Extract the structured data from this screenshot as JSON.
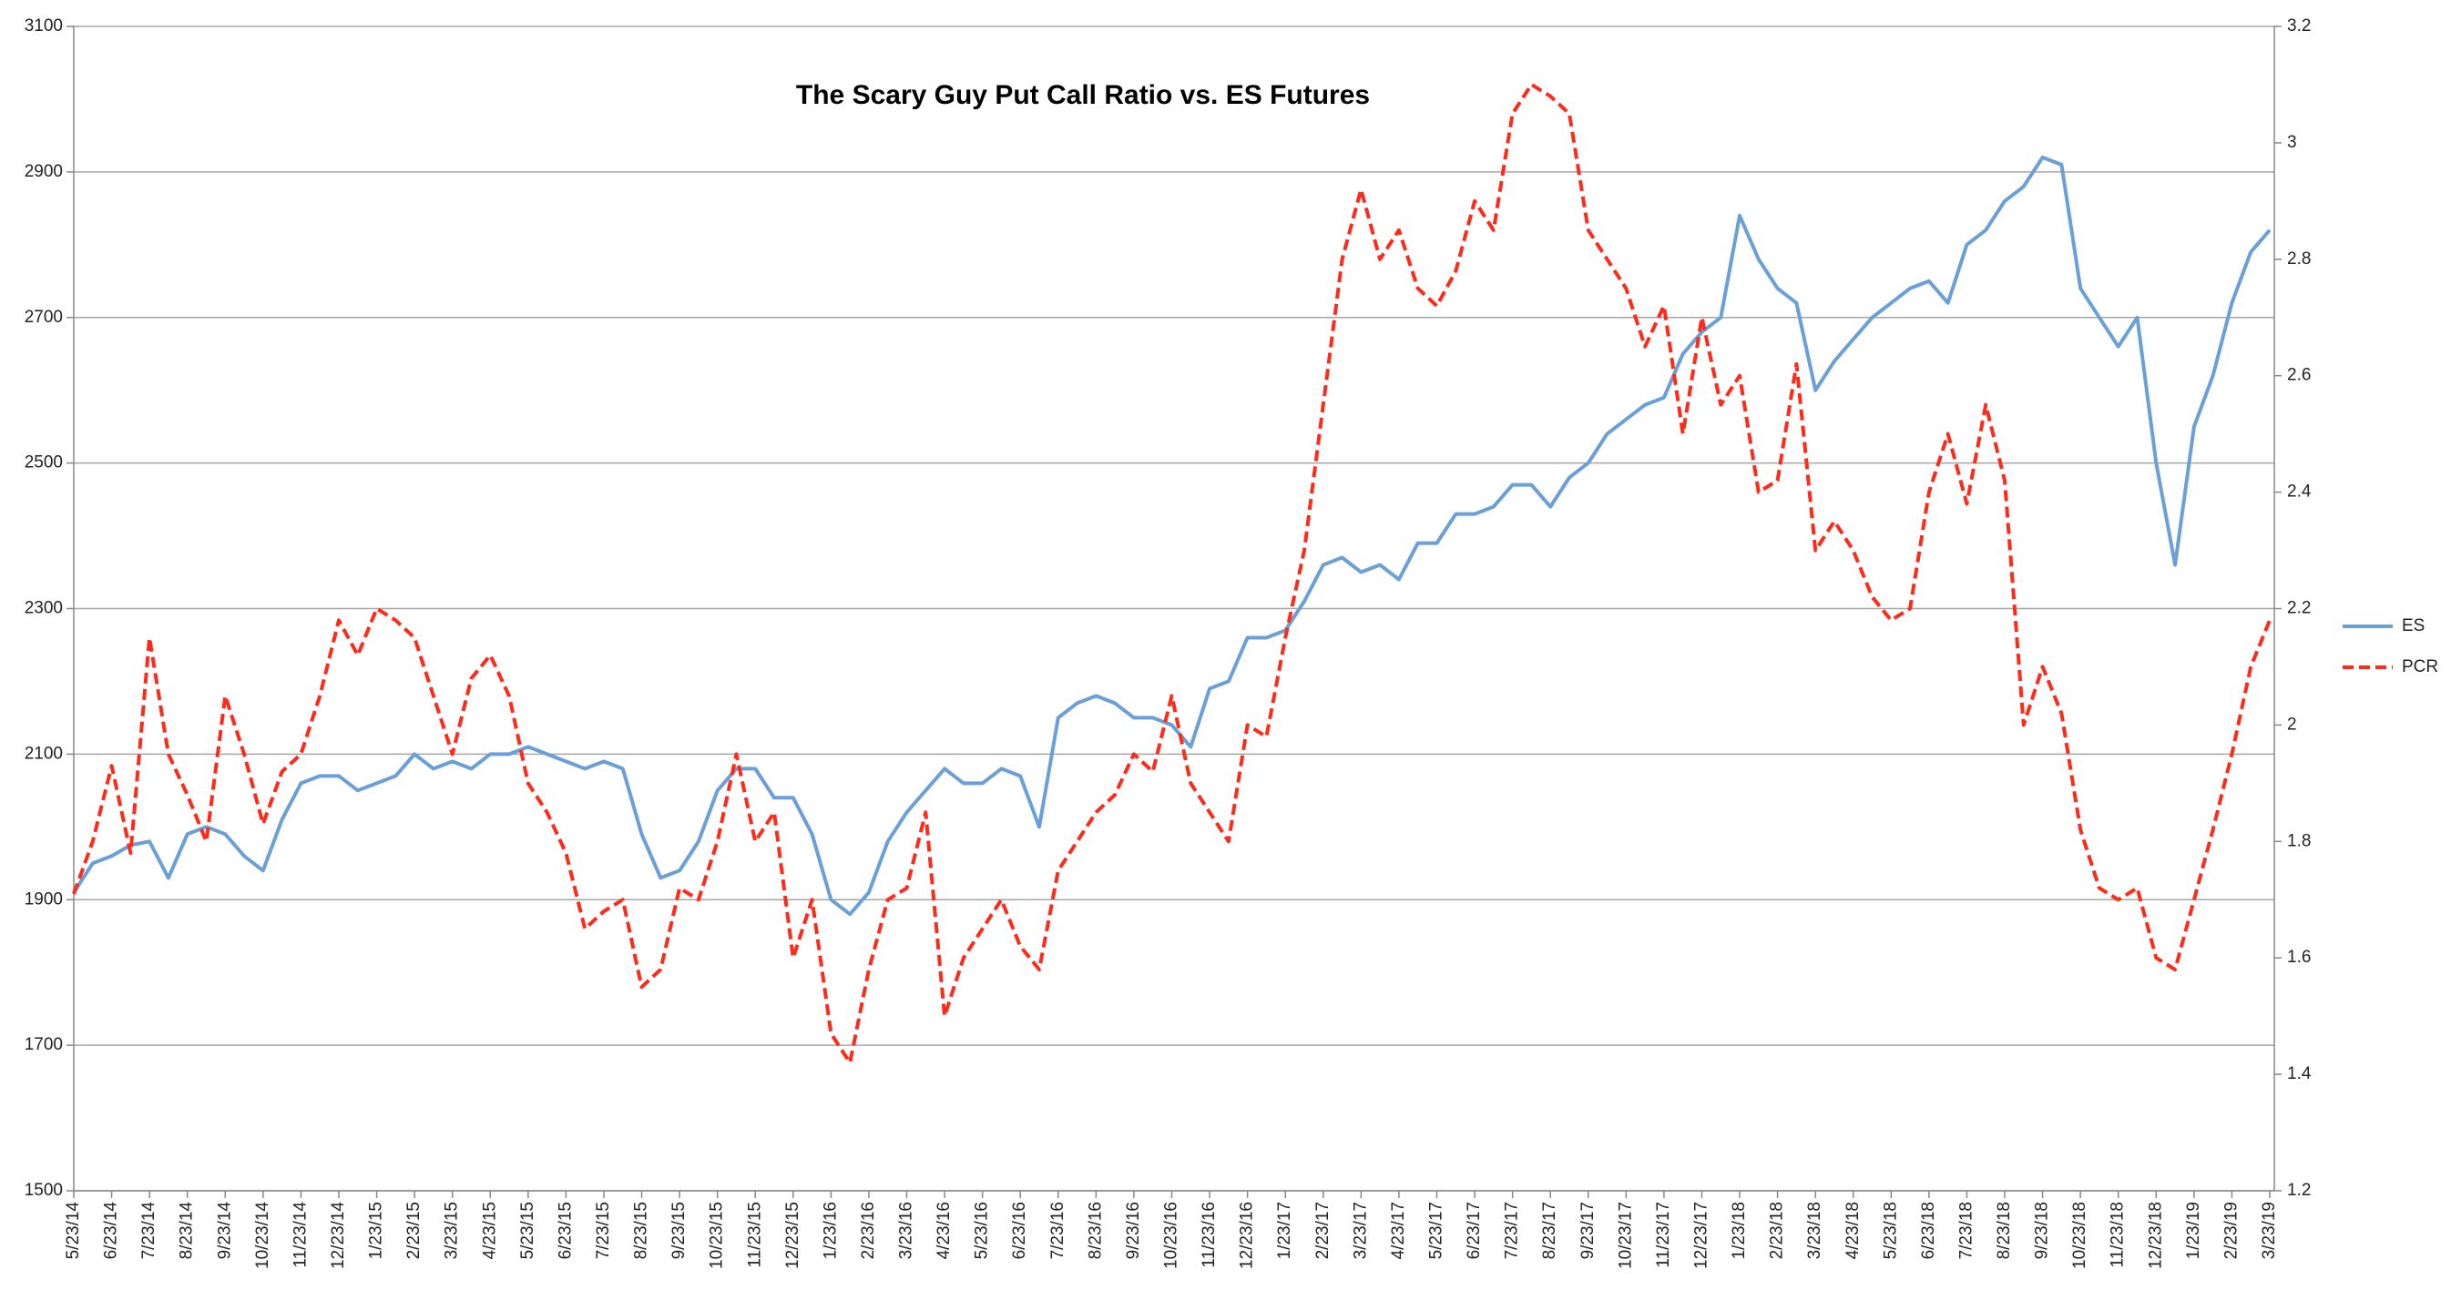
{
  "chart_data": {
    "type": "line",
    "title": "The Scary Guy Put Call Ratio vs. ES Futures",
    "categories": [
      "5/23/14",
      null,
      "6/23/14",
      null,
      "7/23/14",
      null,
      "8/23/14",
      null,
      "9/23/14",
      null,
      "10/23/14",
      null,
      "11/23/14",
      null,
      "12/23/14",
      null,
      "1/23/15",
      null,
      "2/23/15",
      null,
      "3/23/15",
      null,
      "4/23/15",
      null,
      "5/23/15",
      null,
      "6/23/15",
      null,
      "7/23/15",
      null,
      "8/23/15",
      null,
      "9/23/15",
      null,
      "10/23/15",
      null,
      "11/23/15",
      null,
      "12/23/15",
      null,
      "1/23/16",
      null,
      "2/23/16",
      null,
      "3/23/16",
      null,
      "4/23/16",
      null,
      "5/23/16",
      null,
      "6/23/16",
      null,
      "7/23/16",
      null,
      "8/23/16",
      null,
      "9/23/16",
      null,
      "10/23/16",
      null,
      "11/23/16",
      null,
      "12/23/16",
      null,
      "1/23/17",
      null,
      "2/23/17",
      null,
      "3/23/17",
      null,
      "4/23/17",
      null,
      "5/23/17",
      null,
      "6/23/17",
      null,
      "7/23/17",
      null,
      "8/23/17",
      null,
      "9/23/17",
      null,
      "10/23/17",
      null,
      "11/23/17",
      null,
      "12/23/17",
      null,
      "1/23/18",
      null,
      "2/23/18",
      null,
      "3/23/18",
      null,
      "4/23/18",
      null,
      "5/23/18",
      null,
      "6/23/18",
      null,
      "7/23/18",
      null,
      "8/23/18",
      null,
      "9/23/18",
      null,
      "10/23/18",
      null,
      "11/23/18",
      null,
      "12/23/18",
      null,
      "1/23/19",
      null,
      "2/23/19",
      null,
      "3/23/19"
    ],
    "series": [
      {
        "name": "ES",
        "color": "#6a9fd8",
        "axis": "y",
        "dashed": false,
        "values": [
          1910,
          1950,
          1960,
          1975,
          1980,
          1930,
          1990,
          2000,
          1990,
          1960,
          1940,
          2010,
          2060,
          2070,
          2070,
          2050,
          2060,
          2070,
          2100,
          2080,
          2090,
          2080,
          2100,
          2100,
          2110,
          2100,
          2090,
          2080,
          2090,
          2080,
          1990,
          1930,
          1940,
          1980,
          2050,
          2080,
          2080,
          2040,
          2040,
          1990,
          1900,
          1880,
          1910,
          1980,
          2020,
          2050,
          2080,
          2060,
          2060,
          2080,
          2070,
          2000,
          2150,
          2170,
          2180,
          2170,
          2150,
          2150,
          2140,
          2110,
          2190,
          2200,
          2260,
          2260,
          2270,
          2310,
          2360,
          2370,
          2350,
          2360,
          2340,
          2390,
          2390,
          2430,
          2430,
          2440,
          2470,
          2470,
          2440,
          2480,
          2500,
          2540,
          2560,
          2580,
          2590,
          2650,
          2680,
          2700,
          2840,
          2780,
          2740,
          2720,
          2600,
          2640,
          2670,
          2700,
          2720,
          2740,
          2750,
          2720,
          2800,
          2820,
          2860,
          2880,
          2920,
          2910,
          2740,
          2700,
          2660,
          2700,
          2500,
          2360,
          2550,
          2620,
          2720,
          2790,
          2820
        ]
      },
      {
        "name": "PCR",
        "color": "#ff2a1a",
        "axis": "y2",
        "dashed": true,
        "values": [
          1.71,
          1.8,
          1.93,
          1.78,
          2.15,
          1.95,
          1.88,
          1.8,
          2.05,
          1.95,
          1.83,
          1.92,
          1.95,
          2.05,
          2.18,
          2.12,
          2.2,
          2.18,
          2.15,
          2.05,
          1.95,
          2.08,
          2.12,
          2.05,
          1.9,
          1.85,
          1.78,
          1.65,
          1.68,
          1.7,
          1.55,
          1.58,
          1.72,
          1.7,
          1.8,
          1.95,
          1.8,
          1.85,
          1.6,
          1.7,
          1.47,
          1.42,
          1.58,
          1.7,
          1.72,
          1.85,
          1.5,
          1.6,
          1.65,
          1.7,
          1.62,
          1.58,
          1.75,
          1.8,
          1.85,
          1.88,
          1.95,
          1.92,
          2.05,
          1.9,
          1.85,
          1.8,
          2.0,
          1.98,
          2.15,
          2.3,
          2.55,
          2.8,
          2.92,
          2.8,
          2.85,
          2.75,
          2.72,
          2.78,
          2.9,
          2.85,
          3.05,
          3.1,
          3.08,
          3.05,
          2.85,
          2.8,
          2.75,
          2.65,
          2.72,
          2.5,
          2.7,
          2.55,
          2.6,
          2.4,
          2.42,
          2.62,
          2.3,
          2.35,
          2.3,
          2.22,
          2.18,
          2.2,
          2.4,
          2.5,
          2.38,
          2.55,
          2.42,
          2.0,
          2.1,
          2.02,
          1.82,
          1.72,
          1.7,
          1.72,
          1.6,
          1.58,
          1.7,
          1.82,
          1.95,
          2.1,
          2.18
        ]
      }
    ],
    "ylim": [
      1500,
      3100
    ],
    "yticks": [
      1500,
      1700,
      1900,
      2100,
      2300,
      2500,
      2700,
      2900,
      3100
    ],
    "y2lim": [
      1.2,
      3.2
    ],
    "y2ticks": [
      1.2,
      1.4,
      1.6,
      1.8,
      2,
      2.2,
      2.4,
      2.6,
      2.8,
      3,
      3.2
    ],
    "grid": true,
    "legend": "right"
  }
}
